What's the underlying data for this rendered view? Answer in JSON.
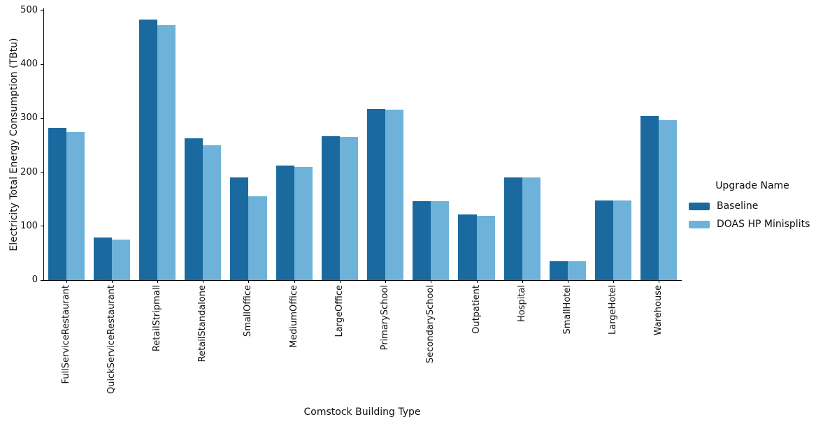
{
  "figure": {
    "background": "#ffffff",
    "text_color": "#111111"
  },
  "chart_data": {
    "type": "bar",
    "title": "",
    "xlabel": "Comstock Building Type",
    "ylabel": "Electricity Total Energy Consumption (TBtu)",
    "categories": [
      "FullServiceRestaurant",
      "QuickServiceRestaurant",
      "RetailStripmall",
      "RetailStandalone",
      "SmallOffice",
      "MediumOffice",
      "LargeOffice",
      "PrimarySchool",
      "SecondarySchool",
      "Outpatient",
      "Hospital",
      "SmallHotel",
      "LargeHotel",
      "Warehouse"
    ],
    "series": [
      {
        "name": "Baseline",
        "color": "#1a6a9f",
        "values": [
          283,
          79,
          483,
          263,
          190,
          212,
          267,
          318,
          146,
          122,
          191,
          35,
          148,
          304
        ]
      },
      {
        "name": "DOAS HP Minisplits",
        "color": "#6fb2d9",
        "values": [
          275,
          75,
          473,
          250,
          155,
          210,
          265,
          316,
          146,
          119,
          191,
          35,
          148,
          296
        ]
      }
    ],
    "ylim": [
      0,
      500
    ],
    "yticks": [
      0,
      100,
      200,
      300,
      400,
      500
    ],
    "grid": false,
    "legend_title": "Upgrade Name",
    "legend_position": "center right",
    "bar_group_width_fraction": 0.8,
    "x_tick_rotation_deg": 90
  }
}
